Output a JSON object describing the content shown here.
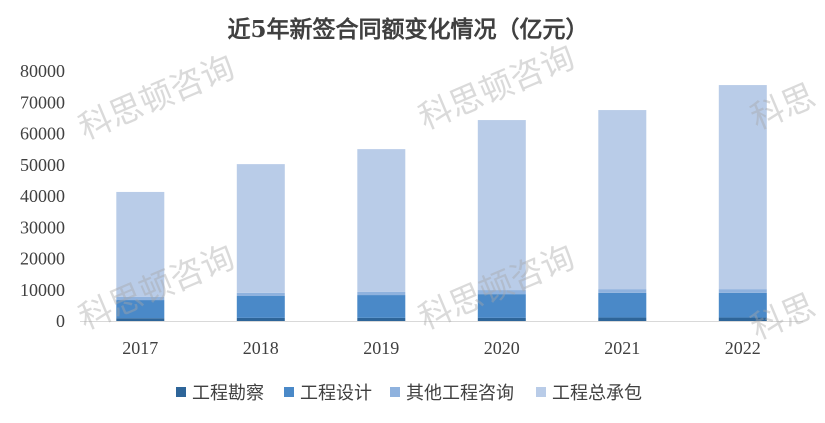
{
  "watermark": {
    "text": "科思顿咨询",
    "clipped_text": "科思"
  },
  "chart_data": {
    "type": "bar",
    "stacked": true,
    "title": "近5年新签合同额变化情况（亿元）",
    "categories": [
      "2017",
      "2018",
      "2019",
      "2020",
      "2021",
      "2022"
    ],
    "series": [
      {
        "name": "工程勘察",
        "color": "#2E6599",
        "values": [
          900,
          1000,
          1000,
          1000,
          1100,
          1100
        ]
      },
      {
        "name": "工程设计",
        "color": "#4A89C8",
        "values": [
          5800,
          7000,
          7300,
          7600,
          7900,
          7900
        ]
      },
      {
        "name": "其他工程咨询",
        "color": "#8FB2DE",
        "values": [
          1000,
          1000,
          1000,
          1300,
          1200,
          1200
        ]
      },
      {
        "name": "工程总承包",
        "color": "#B9CCE8",
        "values": [
          33600,
          41200,
          45700,
          54400,
          57300,
          65300
        ]
      }
    ],
    "ylim": [
      0,
      80000
    ],
    "yticks": [
      0,
      10000,
      20000,
      30000,
      40000,
      50000,
      60000,
      70000,
      80000
    ],
    "grid": false,
    "legend": "bottom"
  }
}
